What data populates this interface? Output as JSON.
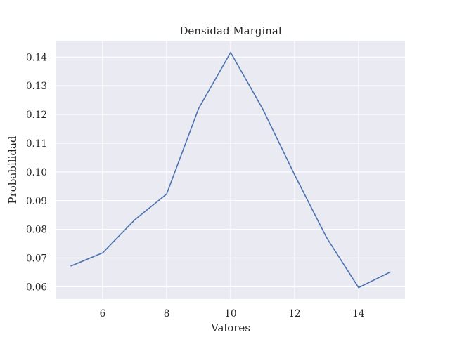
{
  "chart_data": {
    "type": "line",
    "title": "Densidad Marginal",
    "xlabel": "Valores",
    "ylabel": "Probabilidad",
    "xlim": [
      4.55,
      15.45
    ],
    "ylim": [
      0.0557,
      0.1457
    ],
    "xticks": [
      6,
      8,
      10,
      12,
      14
    ],
    "xtick_labels": [
      "6",
      "8",
      "10",
      "12",
      "14"
    ],
    "yticks": [
      0.06,
      0.07,
      0.08,
      0.09,
      0.1,
      0.11,
      0.12,
      0.13,
      0.14
    ],
    "ytick_labels": [
      "0.06",
      "0.07",
      "0.08",
      "0.09",
      "0.10",
      "0.11",
      "0.12",
      "0.13",
      "0.14"
    ],
    "grid": true,
    "series": [
      {
        "x": [
          5,
          6,
          7,
          8,
          9,
          10,
          11,
          12,
          13,
          14,
          15
        ],
        "values": [
          0.0672,
          0.0718,
          0.0833,
          0.0923,
          0.1221,
          0.1416,
          0.122,
          0.099,
          0.0771,
          0.0597,
          0.0652
        ],
        "color": "#4c72b0"
      }
    ],
    "colors": {
      "background": "#eaeaf2",
      "grid": "#ffffff",
      "line": "#4c72b0"
    }
  }
}
